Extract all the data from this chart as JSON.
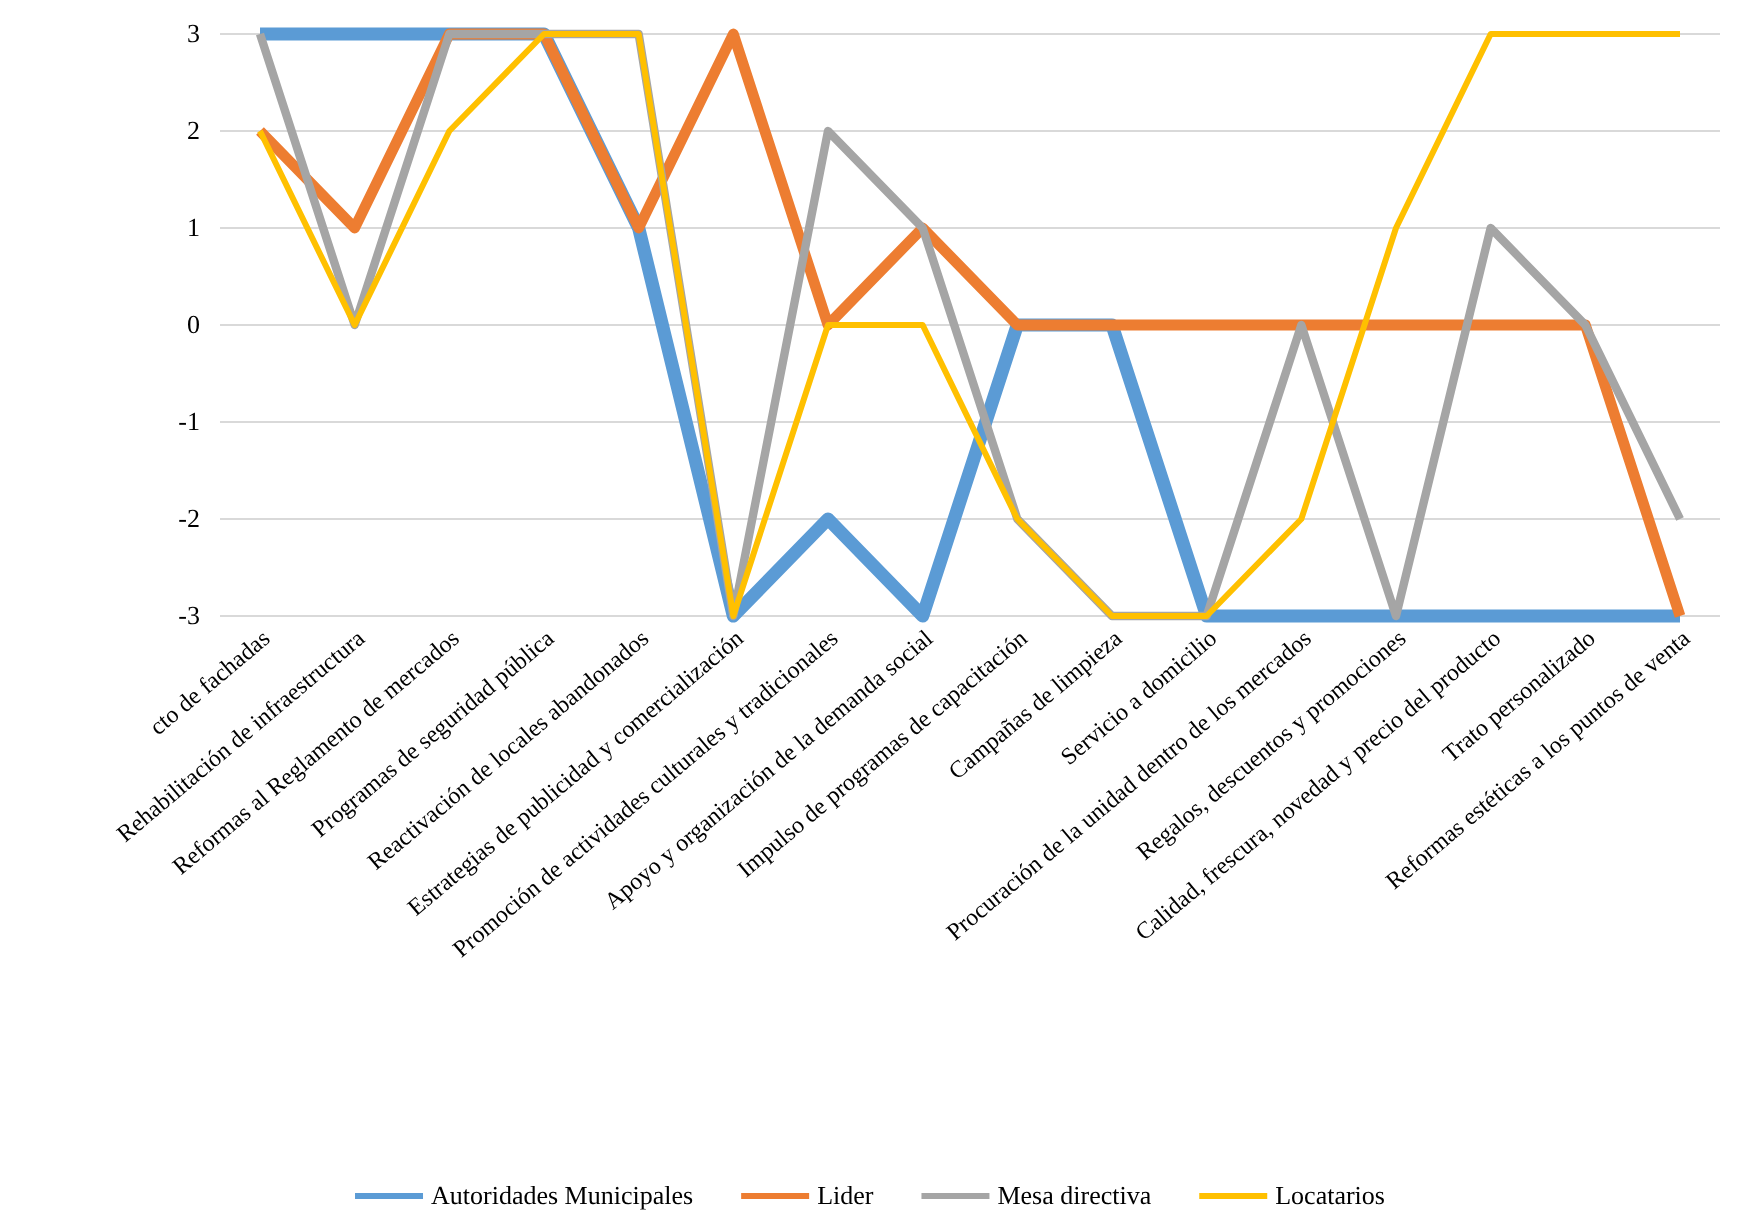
{
  "chart_data": {
    "type": "line",
    "categories": [
      "cto de fachadas",
      "Rehabilitación de infraestructura",
      "Reformas al Reglamento de mercados",
      "Programas de seguridad pública",
      "Reactivación de locales abandonados",
      "Estrategias de publicidad y comercialización",
      "Promoción de actividades culturales y tradicionales",
      "Apoyo y organización de la demanda social",
      "Impulso de programas de capacitación",
      "Campañas de limpieza",
      "Servicio a domicilio",
      "Procuración de la unidad dentro de los mercados",
      "Regalos, descuentos y promociones",
      "Calidad, frescura, novedad y precio del producto",
      "Trato personalizado",
      "Reformas estéticas a los puntos de venta"
    ],
    "series": [
      {
        "name": "Autoridades Municipales",
        "color": "#5b9bd5",
        "values": [
          3,
          3,
          3,
          3,
          1,
          -3,
          -2,
          -3,
          0,
          0,
          -3,
          -3,
          -3,
          -3,
          -3,
          -3
        ]
      },
      {
        "name": "Lider",
        "color": "#ed7d31",
        "values": [
          2,
          1,
          3,
          3,
          1,
          3,
          0,
          1,
          0,
          0,
          0,
          0,
          0,
          0,
          0,
          -3
        ]
      },
      {
        "name": "Mesa directiva",
        "color": "#a5a5a5",
        "values": [
          3,
          0,
          3,
          3,
          3,
          -3,
          2,
          1,
          -2,
          -3,
          -3,
          0,
          -3,
          1,
          0,
          -2
        ]
      },
      {
        "name": "Locatarios",
        "color": "#ffc000",
        "values": [
          2,
          0,
          2,
          3,
          3,
          -3,
          0,
          0,
          -2,
          -3,
          -3,
          -2,
          1,
          3,
          3,
          3
        ]
      }
    ],
    "ylim": [
      -3,
      3
    ],
    "yticks": [
      -3,
      -2,
      -1,
      0,
      1,
      2,
      3
    ],
    "grid": "y",
    "legend": "bottom",
    "marker": "none",
    "line_style": "solid"
  }
}
